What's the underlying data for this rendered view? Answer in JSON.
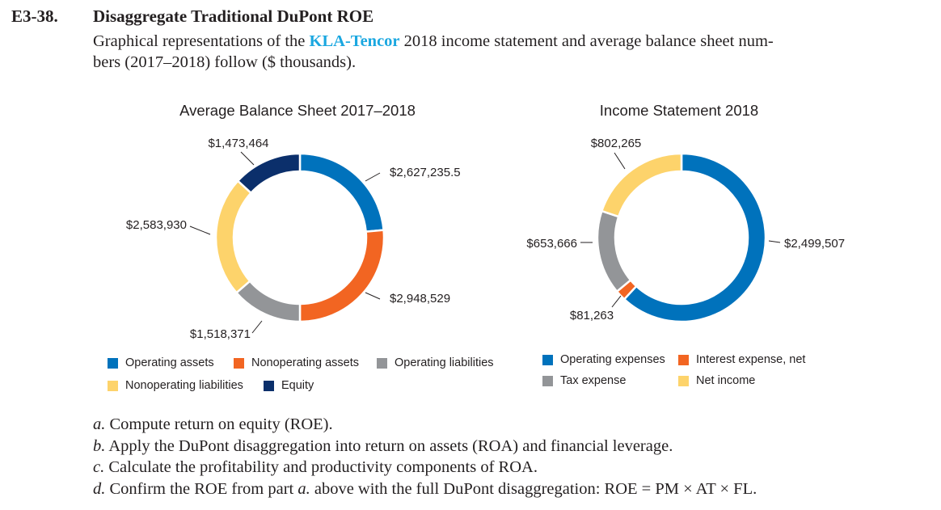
{
  "problem": {
    "number": "E3-38.",
    "title": "Disaggregate Traditional DuPont ROE",
    "intro_before": "Graphical representations of the ",
    "company": "KLA-Tencor",
    "intro_after1": " 2018 income statement and average balance sheet num-",
    "intro_line2": "bers (2017–2018) follow ($ thousands)."
  },
  "chart_data": [
    {
      "type": "pie",
      "subtype": "donut",
      "title": "Average Balance Sheet 2017–2018",
      "units": "$ thousands",
      "slices": [
        {
          "name": "Operating assets",
          "value": 2627235.5,
          "label": "$2,627,235.5",
          "color": "#0072bc"
        },
        {
          "name": "Nonoperating assets",
          "value": 2948529,
          "label": "$2,948,529",
          "color": "#f26522"
        },
        {
          "name": "Operating liabilities",
          "value": 1518371,
          "label": "$1,518,371",
          "color": "#939598"
        },
        {
          "name": "Nonoperating liabilities",
          "value": 2583930,
          "label": "$2,583,930",
          "color": "#fdd36b"
        },
        {
          "name": "Equity",
          "value": 1473464,
          "label": "$1,473,464",
          "color": "#0b2f6b"
        }
      ],
      "legend_position": "bottom"
    },
    {
      "type": "pie",
      "subtype": "donut",
      "title": "Income Statement 2018",
      "units": "$ thousands",
      "slices": [
        {
          "name": "Operating expenses",
          "value": 2499507,
          "label": "$2,499,507",
          "color": "#0072bc"
        },
        {
          "name": "Interest expense, net",
          "value": 81263,
          "label": "$81,263",
          "color": "#f26522"
        },
        {
          "name": "Tax expense",
          "value": 653666,
          "label": "$653,666",
          "color": "#939598"
        },
        {
          "name": "Net income",
          "value": 802265,
          "label": "$802,265",
          "color": "#fdd36b"
        }
      ],
      "legend_position": "bottom"
    }
  ],
  "questions": [
    {
      "letter": "a.",
      "parts": [
        "Compute return on equity (ROE)."
      ]
    },
    {
      "letter": "b.",
      "parts": [
        "Apply the DuPont disaggregation into return on assets (ROA) and financial leverage."
      ]
    },
    {
      "letter": "c.",
      "parts": [
        "Calculate the profitability and productivity components of ROA."
      ]
    },
    {
      "letter": "d.",
      "parts": [
        "Confirm the ROE from part ",
        "a.",
        " above with the full DuPont disaggregation: ROE = PM × AT × FL."
      ]
    }
  ]
}
